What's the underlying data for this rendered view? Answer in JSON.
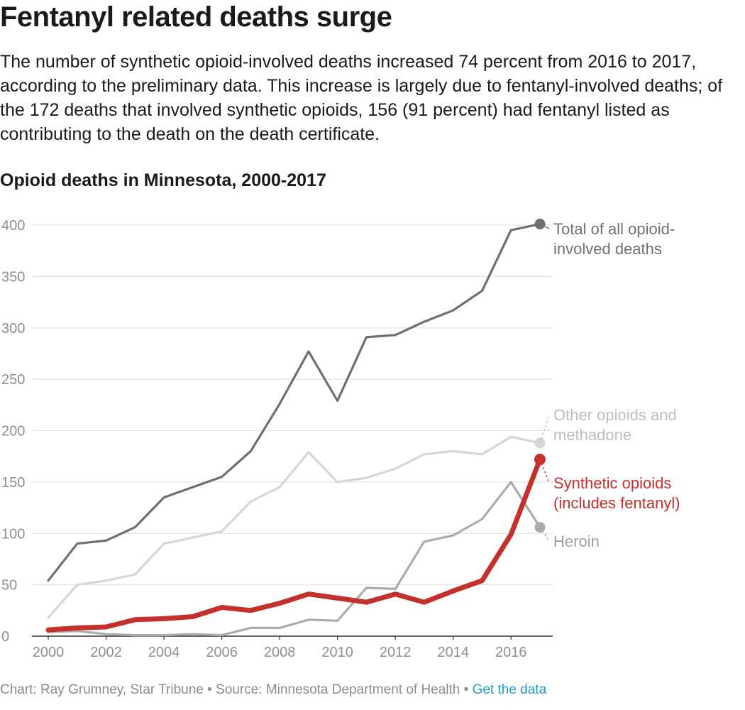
{
  "header": {
    "title": "Fentanyl related deaths surge",
    "description": "The number of synthetic opioid-involved deaths increased 74 percent from 2016 to 2017, according to the preliminary data. This increase is largely due to fentanyl-involved deaths; of the 172 deaths that involved synthetic opioids, 156 (91 percent) had fentanyl listed as contributing to the death on the death certificate.",
    "subtitle": "Opioid deaths in Minnesota, 2000-2017"
  },
  "footer": {
    "credit": "Chart: Ray Grumney, Star Tribune • Source: Minnesota Department of Health • ",
    "link_label": "Get the data"
  },
  "chart_data": {
    "type": "line",
    "title": "Opioid deaths in Minnesota, 2000-2017",
    "xlabel": "",
    "ylabel": "",
    "xlim": [
      2000,
      2017
    ],
    "ylim": [
      0,
      400
    ],
    "x_ticks": [
      2000,
      2002,
      2004,
      2006,
      2008,
      2010,
      2012,
      2014,
      2016
    ],
    "y_ticks": [
      0,
      50,
      100,
      150,
      200,
      250,
      300,
      350,
      400
    ],
    "grid": "horizontal",
    "legend": "direct labels at line ends (right)",
    "x": [
      2000,
      2001,
      2002,
      2003,
      2004,
      2005,
      2006,
      2007,
      2008,
      2009,
      2010,
      2011,
      2012,
      2013,
      2014,
      2015,
      2016,
      2017
    ],
    "series": [
      {
        "name": "Total of all opioid-involved deaths",
        "label_lines": [
          "Total of all opioid-",
          "involved deaths"
        ],
        "color": "#6f6f6f",
        "label_color": "#6f6f6f",
        "values": [
          54,
          90,
          93,
          106,
          135,
          145,
          155,
          180,
          226,
          277,
          229,
          291,
          293,
          306,
          317,
          336,
          395,
          401
        ]
      },
      {
        "name": "Other opioids and methadone",
        "label_lines": [
          "Other opioids and",
          "methadone"
        ],
        "color": "#d6d6d6",
        "label_color": "#bdbdbd",
        "values": [
          18,
          50,
          54,
          60,
          90,
          96,
          102,
          131,
          145,
          179,
          150,
          154,
          163,
          177,
          180,
          177,
          194,
          188
        ]
      },
      {
        "name": "Heroin",
        "label_lines": [
          "Heroin"
        ],
        "color": "#ababab",
        "label_color": "#9e9e9e",
        "values": [
          4,
          5,
          2,
          1,
          1,
          2,
          1,
          8,
          8,
          16,
          15,
          47,
          46,
          92,
          98,
          114,
          150,
          106
        ]
      },
      {
        "name": "Synthetic opioids (includes fentanyl)",
        "label_lines": [
          "Synthetic opioids",
          "(includes fentanyl)"
        ],
        "color": "#c4302b",
        "label_color": "#c4302b",
        "values": [
          6,
          8,
          9,
          16,
          17,
          19,
          28,
          25,
          32,
          41,
          37,
          33,
          41,
          33,
          44,
          54,
          99,
          172
        ]
      }
    ]
  }
}
